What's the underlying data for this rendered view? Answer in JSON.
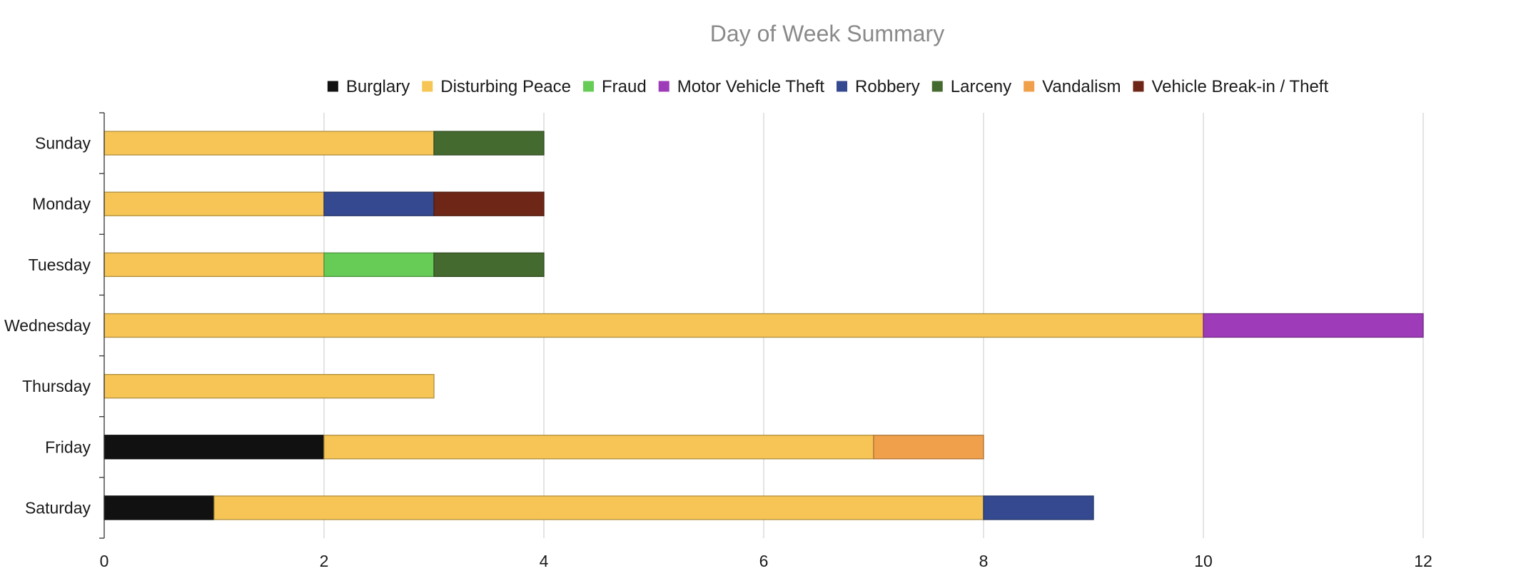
{
  "chart_data": {
    "type": "bar",
    "orientation": "horizontal",
    "stacked": true,
    "title": "Day of Week Summary",
    "xlabel": "",
    "ylabel": "",
    "xlim": [
      0,
      12
    ],
    "x_ticks": [
      "0",
      "2",
      "4",
      "6",
      "8",
      "10",
      "12"
    ],
    "grid": true,
    "legend_position": "top",
    "categories": [
      "Sunday",
      "Monday",
      "Tuesday",
      "Wednesday",
      "Thursday",
      "Friday",
      "Saturday"
    ],
    "series": [
      {
        "name": "Burglary",
        "color": "#111111",
        "values": [
          0,
          0,
          0,
          0,
          0,
          2,
          1
        ]
      },
      {
        "name": "Disturbing Peace",
        "color": "#f6c555",
        "values": [
          3,
          2,
          2,
          10,
          3,
          5,
          7
        ]
      },
      {
        "name": "Fraud",
        "color": "#66cc55",
        "values": [
          0,
          0,
          1,
          0,
          0,
          0,
          0
        ]
      },
      {
        "name": "Motor Vehicle Theft",
        "color": "#9d3bb8",
        "values": [
          0,
          0,
          0,
          2,
          0,
          0,
          0
        ]
      },
      {
        "name": "Robbery",
        "color": "#34498f",
        "values": [
          0,
          1,
          0,
          0,
          0,
          0,
          1
        ]
      },
      {
        "name": "Larceny",
        "color": "#456a2f",
        "values": [
          1,
          0,
          1,
          0,
          0,
          0,
          0
        ]
      },
      {
        "name": "Vandalism",
        "color": "#f0a04b",
        "values": [
          0,
          0,
          0,
          0,
          0,
          1,
          0
        ]
      },
      {
        "name": "Vehicle Break-in / Theft",
        "color": "#6e2716",
        "values": [
          0,
          1,
          0,
          0,
          0,
          0,
          0
        ]
      }
    ]
  }
}
